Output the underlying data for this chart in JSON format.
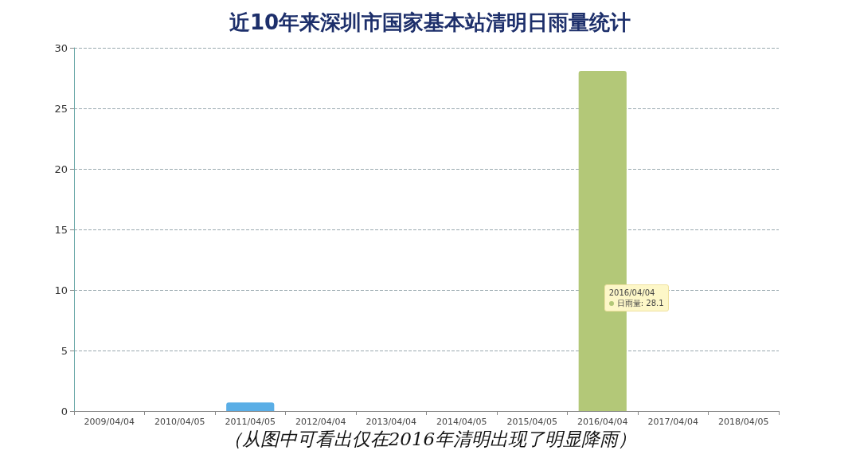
{
  "chart_data": {
    "type": "bar",
    "title": "近10年来深圳市国家基本站清明日雨量统计",
    "categories": [
      "2009/04/04",
      "2010/04/05",
      "2011/04/05",
      "2012/04/04",
      "2013/04/04",
      "2014/04/05",
      "2015/04/05",
      "2016/04/04",
      "2017/04/04",
      "2018/04/05"
    ],
    "values": [
      0,
      0,
      0.7,
      0,
      0,
      0,
      0,
      28.1,
      0,
      0
    ],
    "colors": [
      "#5aaee6",
      "#5aaee6",
      "#5aaee6",
      "#5aaee6",
      "#5aaee6",
      "#5aaee6",
      "#5aaee6",
      "#b3c878",
      "#5aaee6",
      "#5aaee6"
    ],
    "ylim": [
      0,
      30
    ],
    "yticks": [
      0,
      5,
      10,
      15,
      20,
      25,
      30
    ],
    "grid": "y",
    "annotations": [
      "2016/04/04",
      "日雨量: 28.1",
      "（从图中可看出仅在2016年清明出现了明显降雨）"
    ]
  }
}
